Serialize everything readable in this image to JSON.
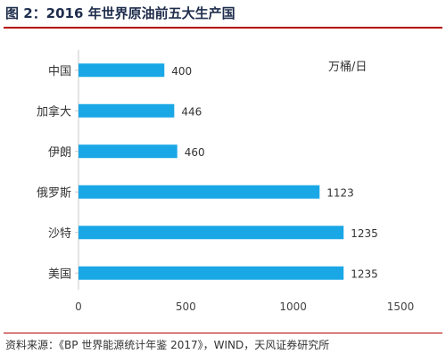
{
  "figure": {
    "title": "图 2：2016 年世界原油前五大生产国",
    "unit": "万桶/日",
    "source": "资料来源：《BP 世界能源统计年鉴 2017》，WIND，天风证券研究所"
  },
  "chart_data": {
    "type": "bar",
    "orientation": "horizontal",
    "categories": [
      "中国",
      "加拿大",
      "伊朗",
      "俄罗斯",
      "沙特",
      "美国"
    ],
    "values": [
      400,
      446,
      460,
      1123,
      1235,
      1235
    ],
    "xlim": [
      0,
      1500
    ],
    "xticks": [
      0,
      500,
      1000,
      1500
    ],
    "bar_color": "#1aa7e6",
    "data_labels": true,
    "grid": false
  }
}
